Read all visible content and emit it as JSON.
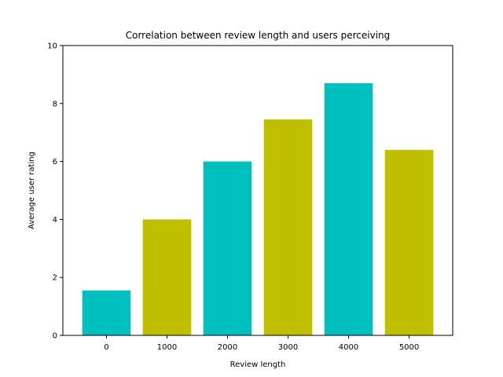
{
  "chart_data": {
    "type": "bar",
    "title": "Correlation between review length and users perceiving",
    "xlabel": "Review length",
    "ylabel": "Average user rating",
    "categories": [
      "0",
      "1000",
      "2000",
      "3000",
      "4000",
      "5000"
    ],
    "values": [
      1.55,
      4.0,
      6.0,
      7.45,
      8.7,
      6.4
    ],
    "bar_colors": [
      "#00bfbf",
      "#bfbf00",
      "#00bfbf",
      "#bfbf00",
      "#00bfbf",
      "#bfbf00"
    ],
    "ylim": [
      0,
      10
    ],
    "yticks": [
      0,
      2,
      4,
      6,
      8,
      10
    ],
    "grid": false,
    "legend": "none"
  }
}
